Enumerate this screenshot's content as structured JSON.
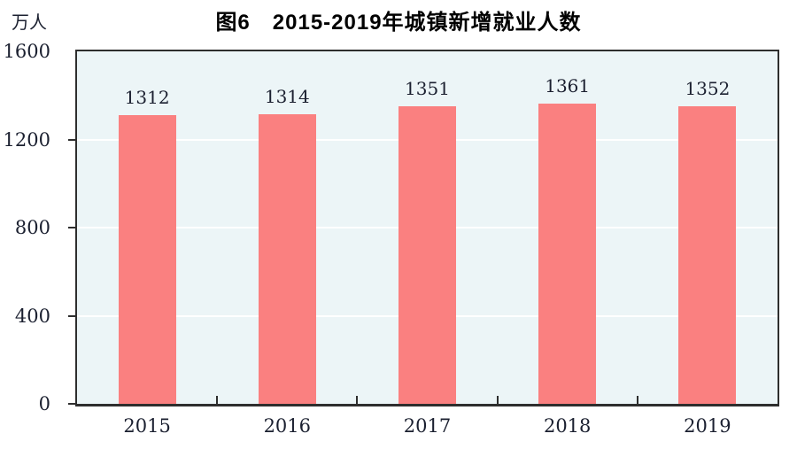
{
  "header": {
    "title": "图6　2015-2019年城镇新增就业人数",
    "unit_label": "万人"
  },
  "chart_data": {
    "type": "bar",
    "title": "图6　2015-2019年城镇新增就业人数",
    "categories": [
      "2015",
      "2016",
      "2017",
      "2018",
      "2019"
    ],
    "values": [
      1312,
      1314,
      1351,
      1361,
      1352
    ],
    "xlabel": "",
    "ylabel": "万人",
    "ylim": [
      0,
      1600
    ],
    "yticks": [
      0,
      400,
      800,
      1200,
      1600
    ],
    "grid": true,
    "legend_position": "none",
    "colors": {
      "bar": "#FA8080",
      "plot_background": "#ECF5F7",
      "gridline": "#FFFFFF",
      "axis": "#2E2E2E",
      "label_text": "#1B2030",
      "title_text": "#000000"
    }
  }
}
